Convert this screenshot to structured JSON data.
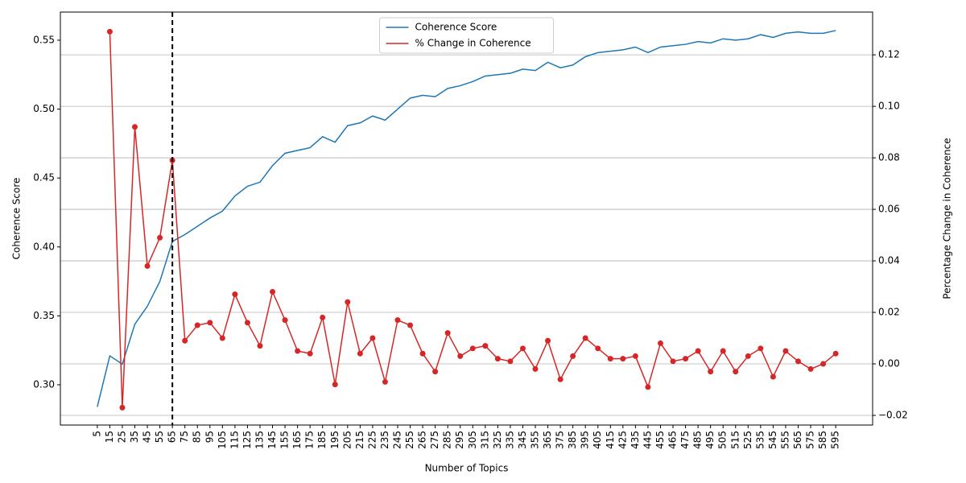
{
  "chart_data": {
    "type": "line",
    "xlabel": "Number of Topics",
    "ylabel": "Coherence Score",
    "y2label": "Percentage Change in Coherence",
    "x": [
      5,
      15,
      25,
      35,
      45,
      55,
      65,
      75,
      85,
      95,
      105,
      115,
      125,
      135,
      145,
      155,
      165,
      175,
      185,
      195,
      205,
      215,
      225,
      235,
      245,
      255,
      265,
      275,
      285,
      295,
      305,
      315,
      325,
      335,
      345,
      355,
      365,
      375,
      385,
      395,
      405,
      415,
      425,
      435,
      445,
      455,
      465,
      475,
      485,
      495,
      505,
      515,
      525,
      535,
      545,
      555,
      565,
      575,
      585,
      595
    ],
    "xlim": [
      -24.5,
      624.5
    ],
    "xticks": [
      5,
      15,
      25,
      35,
      45,
      55,
      65,
      75,
      85,
      95,
      105,
      115,
      125,
      135,
      145,
      155,
      165,
      175,
      185,
      195,
      205,
      215,
      225,
      235,
      245,
      255,
      265,
      275,
      285,
      295,
      305,
      315,
      325,
      335,
      345,
      355,
      365,
      375,
      385,
      395,
      405,
      415,
      425,
      435,
      445,
      455,
      465,
      475,
      485,
      495,
      505,
      515,
      525,
      535,
      545,
      555,
      565,
      575,
      585,
      595
    ],
    "ylim": [
      0.2708,
      0.5704
    ],
    "yticks": [
      {
        "value": 0.3,
        "label": "0.30"
      },
      0.35,
      {
        "value": 0.4,
        "label": "0.40"
      },
      0.45,
      {
        "value": 0.5,
        "label": "0.50"
      },
      0.55
    ],
    "y2lim": [
      -0.02375,
      0.1366
    ],
    "y2ticks": [
      {
        "value": -0.02,
        "label": "−0.02"
      },
      {
        "value": 0,
        "label": "0.00"
      },
      0.02,
      0.04,
      0.06,
      0.08,
      {
        "value": 0.1,
        "label": "0.10"
      },
      0.12
    ],
    "grid": "y2",
    "legend": "upper center",
    "vline_x": 65,
    "series": [
      {
        "name": "Coherence Score",
        "color": "#1f77b4",
        "axis": "y",
        "values": [
          0.284,
          0.321,
          0.315,
          0.344,
          0.357,
          0.375,
          0.404,
          0.409,
          0.415,
          0.421,
          0.426,
          0.437,
          0.444,
          0.447,
          0.459,
          0.468,
          0.47,
          0.472,
          0.48,
          0.476,
          0.488,
          0.49,
          0.495,
          0.492,
          0.5,
          0.508,
          0.51,
          0.509,
          0.515,
          0.517,
          0.52,
          0.524,
          0.525,
          0.526,
          0.529,
          0.528,
          0.534,
          0.53,
          0.532,
          0.538,
          0.541,
          0.542,
          0.543,
          0.545,
          0.541,
          0.545,
          0.546,
          0.547,
          0.549,
          0.548,
          0.551,
          0.55,
          0.551,
          0.554,
          0.552,
          0.555,
          0.556,
          0.555,
          0.555,
          0.557
        ]
      },
      {
        "name": "% Change in Coherence",
        "color": "#d62728",
        "axis": "y2",
        "marker": "o",
        "values": [
          null,
          0.129,
          -0.017,
          0.092,
          0.038,
          0.049,
          0.079,
          0.009,
          0.015,
          0.016,
          0.01,
          0.027,
          0.016,
          0.007,
          0.028,
          0.017,
          0.005,
          0.004,
          0.018,
          -0.008,
          0.024,
          0.004,
          0.01,
          -0.007,
          0.017,
          0.015,
          0.004,
          -0.003,
          0.012,
          0.003,
          0.006,
          0.007,
          0.002,
          0.001,
          0.006,
          -0.002,
          0.009,
          -0.006,
          0.003,
          0.01,
          0.006,
          0.002,
          0.002,
          0.003,
          -0.009,
          0.008,
          0.001,
          0.002,
          0.005,
          -0.003,
          0.005,
          -0.003,
          0.003,
          0.006,
          -0.005,
          0.005,
          0.001,
          -0.002,
          0.0,
          0.004
        ]
      }
    ]
  }
}
